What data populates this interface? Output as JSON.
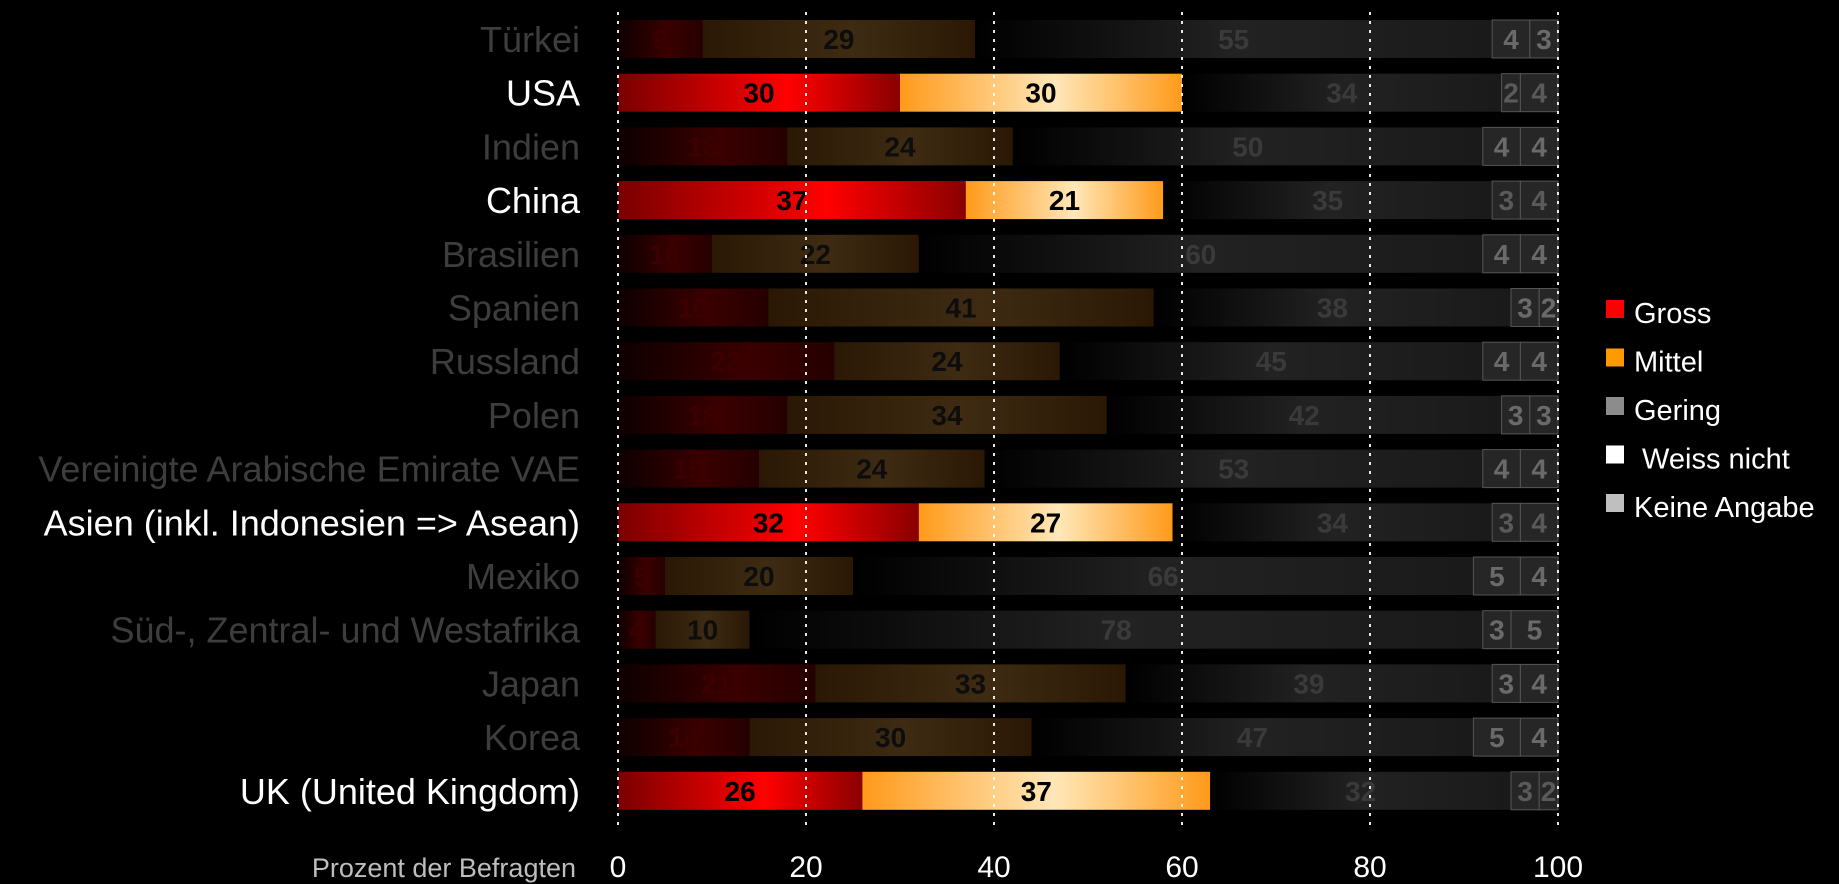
{
  "chart_data": {
    "type": "bar",
    "orientation": "horizontal",
    "stacked": true,
    "xlabel": "Prozent der Befragten",
    "xlim": [
      0,
      100
    ],
    "xticks": [
      "0",
      "20",
      "40",
      "60",
      "80",
      "100"
    ],
    "grid": true,
    "legend_position": "right",
    "categories": [
      "Türkei",
      "USA",
      "Indien",
      "China",
      "Brasilien",
      "Spanien",
      "Russland",
      "Polen",
      "Vereinigte Arabische Emirate VAE",
      "Asien (inkl. Indonesien => Asean)",
      "Mexiko",
      "Süd-, Zentral- und Westafrika",
      "Japan",
      "Korea",
      "UK (United Kingdom)"
    ],
    "highlighted": [
      false,
      true,
      false,
      true,
      false,
      false,
      false,
      false,
      false,
      true,
      false,
      false,
      false,
      false,
      true
    ],
    "series": [
      {
        "name": "Gross",
        "color": "#ff0000",
        "values": [
          9,
          30,
          18,
          37,
          10,
          16,
          23,
          18,
          15,
          32,
          5,
          4,
          21,
          14,
          26
        ]
      },
      {
        "name": "Mittel",
        "color": "#ff9900",
        "values": [
          29,
          30,
          24,
          21,
          22,
          41,
          24,
          34,
          24,
          27,
          20,
          10,
          33,
          30,
          37
        ]
      },
      {
        "name": "Gering",
        "color": "#8c8c8c",
        "values": [
          55,
          34,
          50,
          35,
          60,
          38,
          45,
          42,
          53,
          34,
          66,
          78,
          39,
          47,
          32
        ]
      },
      {
        "name": " Weiss nicht",
        "color": "#ffffff",
        "values": [
          4,
          2,
          4,
          3,
          4,
          3,
          4,
          3,
          4,
          3,
          5,
          3,
          3,
          5,
          3
        ]
      },
      {
        "name": "Keine Angabe",
        "color": "#bfbfbf",
        "values": [
          3,
          4,
          4,
          4,
          4,
          2,
          4,
          3,
          4,
          4,
          4,
          5,
          4,
          4,
          2
        ]
      }
    ]
  }
}
